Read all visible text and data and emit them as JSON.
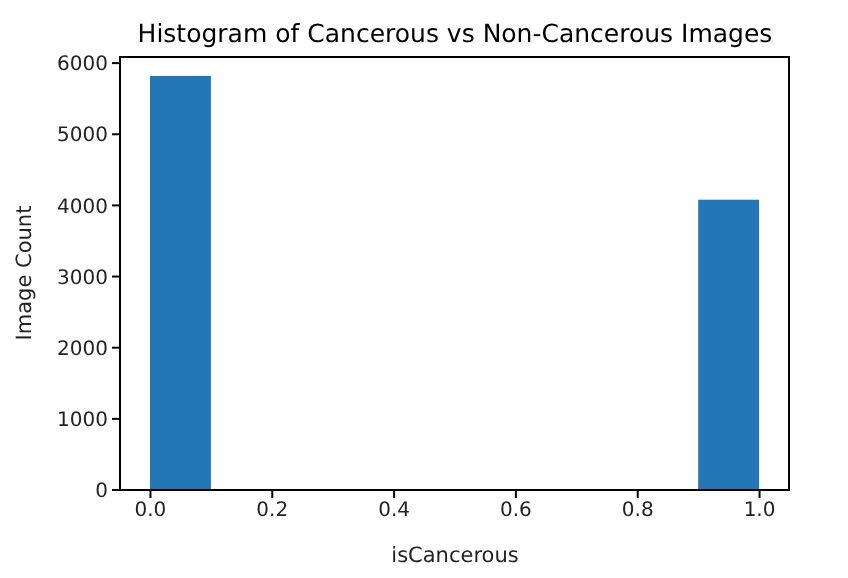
{
  "chart_data": {
    "type": "histogram",
    "title": "Histogram of Cancerous vs Non-Cancerous Images",
    "xlabel": "isCancerous",
    "ylabel": "Image Count",
    "bins": [
      0,
      0.1,
      0.2,
      0.3,
      0.4,
      0.5,
      0.6,
      0.7,
      0.8,
      0.9,
      1.0
    ],
    "values": [
      5820,
      0,
      0,
      0,
      0,
      0,
      0,
      0,
      0,
      4080
    ],
    "color": "#2377b4",
    "xlim": [
      -0.05,
      1.05
    ],
    "xticks": [
      {
        "value": 0,
        "label": "0.0"
      },
      {
        "value": 0.2,
        "label": "0.2"
      },
      {
        "value": 0.4,
        "label": "0.4"
      },
      {
        "value": 0.6,
        "label": "0.6"
      },
      {
        "value": 0.8,
        "label": "0.8"
      },
      {
        "value": 1,
        "label": "1.0"
      }
    ],
    "ylim": [
      0,
      6100
    ],
    "yticks": [
      0,
      1000,
      2000,
      3000,
      4000,
      5000,
      6000
    ],
    "grid": false
  }
}
